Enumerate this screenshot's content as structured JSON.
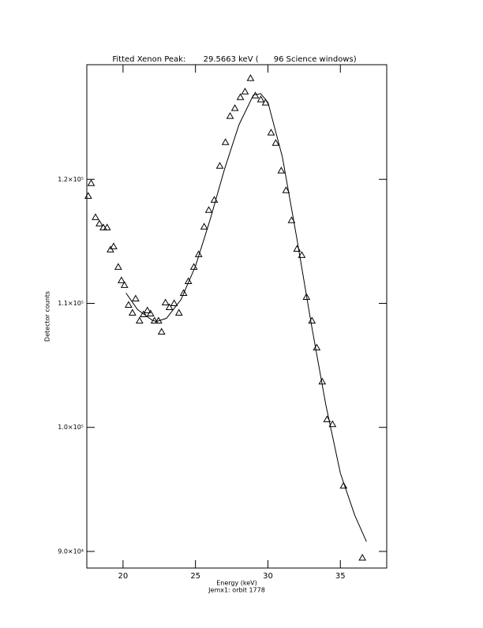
{
  "chart_data": {
    "type": "scatter",
    "title": "Fitted Xenon Peak:       29.5663 keV (      96 Science windows)",
    "x_label": "Energy (keV)",
    "subtitle": "Jemx1: orbit 1778",
    "y_label": "Detector counts",
    "xlim": [
      17.5,
      38.2
    ],
    "ylim": [
      88660,
      129240
    ],
    "xticks": [
      20,
      25,
      30,
      35
    ],
    "yticks": [
      {
        "value": 90000,
        "label": "9.0×10⁴"
      },
      {
        "value": 100000,
        "label": "1.0×10⁵"
      },
      {
        "value": 110000,
        "label": "1.1×10⁵"
      },
      {
        "value": 120000,
        "label": "1.2×10⁵"
      }
    ],
    "series": [
      {
        "mode": "markers",
        "marker": "triangle",
        "color": "#000000",
        "x": [
          17.6,
          17.8,
          18.1,
          18.37,
          18.64,
          18.9,
          19.13,
          19.35,
          19.67,
          19.89,
          20.1,
          20.38,
          20.65,
          20.87,
          21.14,
          21.41,
          21.68,
          21.9,
          22.17,
          22.45,
          22.66,
          22.93,
          23.2,
          23.53,
          23.86,
          24.18,
          24.51,
          24.89,
          25.22,
          25.6,
          25.92,
          26.3,
          26.68,
          27.07,
          27.39,
          27.72,
          28.1,
          28.42,
          28.8,
          29.13,
          29.51,
          29.84,
          30.22,
          30.54,
          30.92,
          31.25,
          31.63,
          32.01,
          32.34,
          32.66,
          33.04,
          33.37,
          33.75,
          34.08,
          34.46,
          35.22,
          36.52
        ],
        "values": [
          118660,
          119680,
          116940,
          116430,
          116110,
          116110,
          114330,
          114590,
          112930,
          111850,
          111470,
          109870,
          109240,
          110380,
          108600,
          109110,
          109430,
          109170,
          108600,
          108600,
          107710,
          110060,
          109680,
          110000,
          109240,
          110830,
          111780,
          112930,
          113950,
          116180,
          117520,
          118340,
          121080,
          122990,
          125100,
          125730,
          126620,
          127070,
          128150,
          126750,
          126430,
          126180,
          123760,
          122930,
          120700,
          119110,
          116690,
          114390,
          113890,
          110510,
          108600,
          106430,
          103690,
          100640,
          100250,
          95290,
          89490
        ]
      },
      {
        "mode": "line",
        "color": "#000000",
        "x": [
          20.2,
          21,
          22,
          22.3,
          23,
          24,
          25,
          26,
          27,
          28,
          29,
          29.5,
          30,
          31,
          32,
          33,
          34,
          35,
          36,
          36.8
        ],
        "values": [
          110830,
          109500,
          108650,
          108530,
          108800,
          110300,
          113000,
          116700,
          120800,
          124400,
          126800,
          126900,
          126200,
          121800,
          115200,
          108300,
          101800,
          96300,
          92900,
          90800
        ]
      }
    ]
  }
}
